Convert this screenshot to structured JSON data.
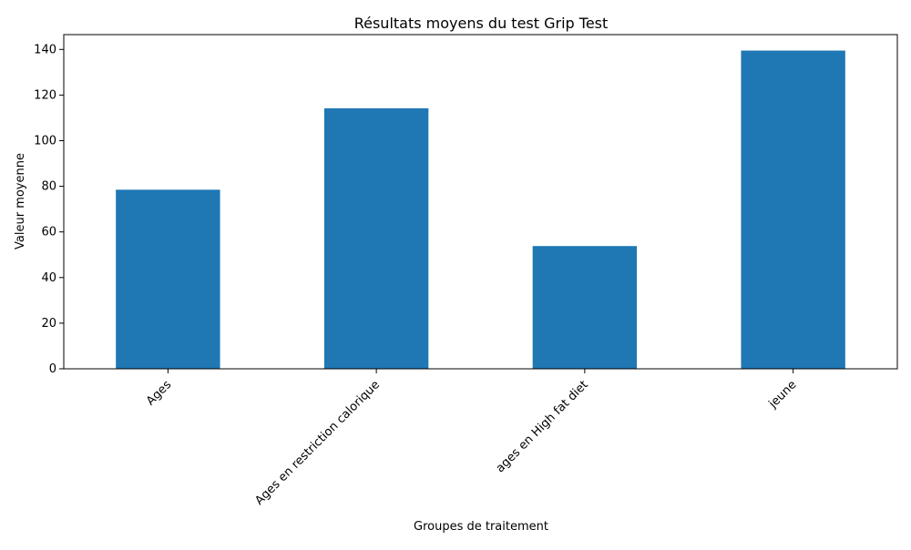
{
  "chart_data": {
    "type": "bar",
    "title": "Résultats moyens du test Grip Test",
    "xlabel": "Groupes de traitement",
    "ylabel": "Valeur moyenne",
    "categories": [
      "Ages",
      "Ages en restriction calorique",
      "ages en High fat diet",
      "jeune"
    ],
    "values": [
      78.5,
      114.2,
      53.8,
      139.5
    ],
    "ylim": [
      0,
      146.5
    ],
    "yticks": [
      0,
      20,
      40,
      60,
      80,
      100,
      120,
      140
    ],
    "bar_color": "#1f77b4",
    "grid": false,
    "legend": "none"
  }
}
